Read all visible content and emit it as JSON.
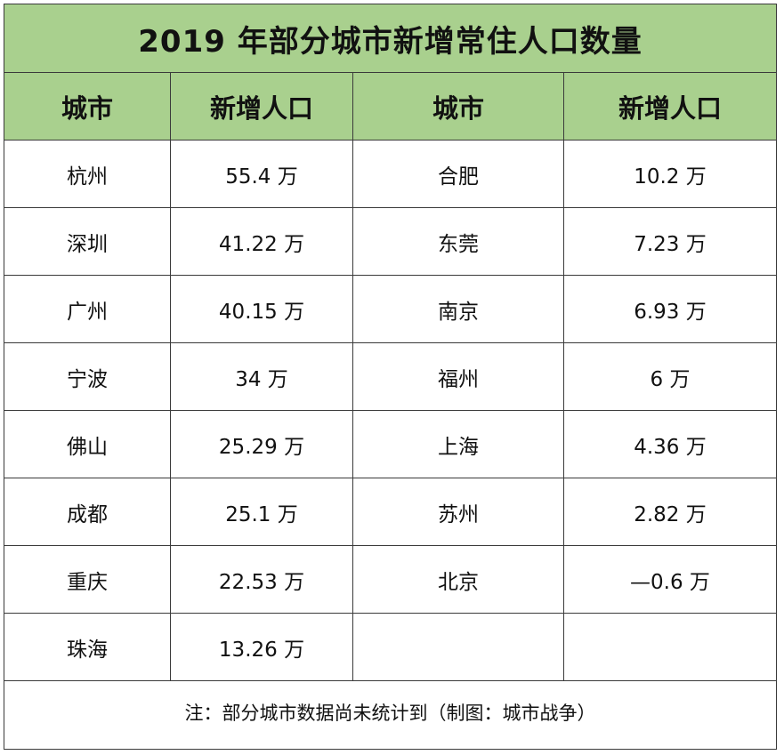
{
  "title": "2019 年部分城市新增常住人口数量",
  "headers": [
    "城市",
    "新增人口",
    "城市",
    "新增人口"
  ],
  "rows": [
    {
      "city_a": "杭州",
      "value_a": "55.4 万",
      "city_b": "合肥",
      "value_b": "10.2 万"
    },
    {
      "city_a": "深圳",
      "value_a": "41.22 万",
      "city_b": "东莞",
      "value_b": "7.23 万"
    },
    {
      "city_a": "广州",
      "value_a": "40.15 万",
      "city_b": "南京",
      "value_b": "6.93 万"
    },
    {
      "city_a": "宁波",
      "value_a": "34 万",
      "city_b": "福州",
      "value_b": "6 万"
    },
    {
      "city_a": "佛山",
      "value_a": "25.29 万",
      "city_b": "上海",
      "value_b": "4.36 万"
    },
    {
      "city_a": "成都",
      "value_a": "25.1 万",
      "city_b": "苏州",
      "value_b": "2.82 万"
    },
    {
      "city_a": "重庆",
      "value_a": "22.53 万",
      "city_b": "北京",
      "value_b": "—0.6 万"
    },
    {
      "city_a": "珠海",
      "value_a": "13.26 万",
      "city_b": "",
      "value_b": ""
    }
  ],
  "footnote": "注：部分城市数据尚未统计到（制图：城市战争）",
  "colors": {
    "header_fill": "#a9d08e",
    "border": "#3a3a3a"
  }
}
